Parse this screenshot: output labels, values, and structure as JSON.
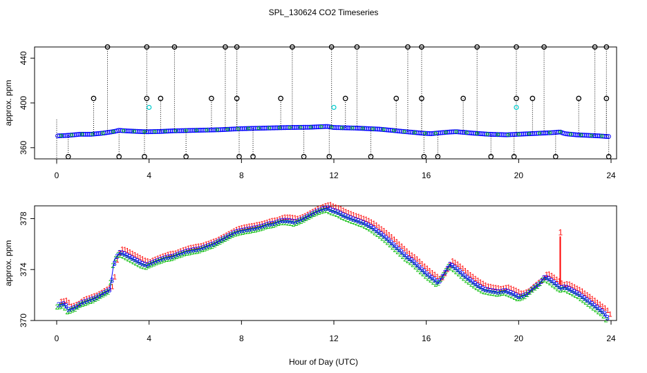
{
  "chart_data": [
    {
      "type": "scatter",
      "title": "SPL_130624  CO2 Timeseries",
      "ylabel": "approx. ppm",
      "xlim": [
        0,
        24
      ],
      "ylim": [
        350,
        450
      ],
      "xticks": [
        0,
        4,
        8,
        12,
        16,
        20,
        24
      ],
      "xtick_labels": [
        "0",
        "4",
        "8",
        "12",
        "16",
        "20",
        "24"
      ],
      "yticks": [
        360,
        400,
        440
      ],
      "ytick_labels": [
        "360",
        "400",
        "440"
      ],
      "grid": false,
      "main_series": {
        "x": [
          0.0,
          0.5,
          1.0,
          1.5,
          2.0,
          2.5,
          2.7,
          3.0,
          3.5,
          3.9,
          4.5,
          5.0,
          6.0,
          7.0,
          8.0,
          9.0,
          10.0,
          11.0,
          11.7,
          12.0,
          13.0,
          14.0,
          15.0,
          15.8,
          16.2,
          17.0,
          17.3,
          18.0,
          18.7,
          19.5,
          20.0,
          20.5,
          21.0,
          21.5,
          21.8,
          22.0,
          22.5,
          23.0,
          23.5,
          23.7,
          23.8
        ],
        "y": [
          370.5,
          371,
          372,
          372,
          373,
          374.5,
          375.5,
          375,
          374.5,
          374.2,
          374.5,
          375,
          375.5,
          376,
          377,
          377.5,
          378,
          378.3,
          379,
          378,
          377.5,
          376.5,
          374.5,
          373,
          372.5,
          374,
          374.3,
          373,
          372,
          371.5,
          372,
          372.5,
          373,
          373.5,
          374,
          372.5,
          371.5,
          371,
          370.5,
          370.2,
          370
        ]
      },
      "spikes": {
        "x": [
          2.2,
          3.9,
          5.1,
          7.3,
          7.8,
          10.2,
          11.9,
          13.0,
          15.2,
          15.8,
          18.2,
          19.9,
          21.1,
          23.3,
          23.8
        ],
        "high": [
          450,
          450,
          450,
          450,
          450,
          450,
          450,
          450,
          450,
          450,
          450,
          450,
          450,
          450,
          450
        ]
      },
      "mid_spikes": {
        "x": [
          1.6,
          3.9,
          4.5,
          6.7,
          7.8,
          9.7,
          12.5,
          14.7,
          15.8,
          17.6,
          19.9,
          20.6,
          22.6,
          23.8
        ],
        "y": [
          404,
          404,
          404,
          404,
          404,
          404,
          404,
          404,
          404,
          404,
          404,
          404,
          404,
          404
        ]
      },
      "low_spikes": {
        "x": [
          0.5,
          2.7,
          3.8,
          5.6,
          7.9,
          8.5,
          10.7,
          11.8,
          13.6,
          15.9,
          16.5,
          18.8,
          19.8,
          21.6,
          23.9
        ],
        "y": [
          352,
          352,
          352,
          352,
          352,
          352,
          352,
          352,
          352,
          352,
          352,
          352,
          352,
          352,
          352
        ]
      },
      "cyan_points": {
        "x": [
          4.0,
          12.0,
          19.9
        ],
        "y": [
          396,
          396,
          396
        ]
      },
      "marker_colors": {
        "main": "#0000ff",
        "spike": "#000000",
        "cyan": "#00cccc",
        "red": "#ff0000",
        "green": "#00cc00"
      }
    },
    {
      "type": "scatter",
      "title": "",
      "xlabel": "Hour of Day (UTC)",
      "ylabel": "approx. ppm",
      "xlim": [
        0,
        24
      ],
      "ylim": [
        370,
        379
      ],
      "xticks": [
        0,
        4,
        8,
        12,
        16,
        20,
        24
      ],
      "xtick_labels": [
        "0",
        "4",
        "8",
        "12",
        "16",
        "20",
        "24"
      ],
      "yticks": [
        370,
        374,
        378
      ],
      "ytick_labels": [
        "370",
        "374",
        "378"
      ],
      "grid": false,
      "series": [
        {
          "x": [
            0.1,
            0.3,
            0.5,
            0.8,
            1.0,
            1.3,
            1.6,
            1.9,
            2.1,
            2.3,
            2.4,
            2.5,
            2.7,
            2.9,
            3.1,
            3.3,
            3.5,
            3.7,
            3.9,
            4.1,
            4.4,
            4.7,
            5.0,
            5.3,
            5.6,
            5.9,
            6.2,
            6.5,
            6.8,
            7.0,
            7.3,
            7.6,
            7.9,
            8.2,
            8.5,
            8.8,
            9.1,
            9.4,
            9.7,
            10.0,
            10.3,
            10.6,
            10.9,
            11.2,
            11.5,
            11.7,
            11.9,
            12.1,
            12.4,
            12.7,
            13.0,
            13.3,
            13.6,
            13.9,
            14.2,
            14.5,
            14.8,
            15.1,
            15.4,
            15.7,
            16.0,
            16.3,
            16.5,
            16.7,
            17.0,
            17.3,
            17.6,
            17.9,
            18.2,
            18.5,
            18.8,
            19.1,
            19.4,
            19.7,
            20.0,
            20.3,
            20.6,
            20.9,
            21.1,
            21.3,
            21.6,
            21.8,
            22.0,
            22.3,
            22.6,
            22.9,
            23.2,
            23.5,
            23.7,
            23.8
          ],
          "y": [
            371.2,
            371.3,
            370.8,
            371.0,
            371.3,
            371.5,
            371.7,
            372.0,
            372.2,
            372.4,
            373.6,
            374.8,
            375.3,
            375.2,
            375.0,
            374.8,
            374.6,
            374.4,
            374.3,
            374.5,
            374.7,
            374.9,
            375.0,
            375.2,
            375.4,
            375.5,
            375.6,
            375.8,
            376.0,
            376.2,
            376.5,
            376.8,
            377.0,
            377.1,
            377.2,
            377.3,
            377.5,
            377.6,
            377.8,
            377.8,
            377.7,
            377.9,
            378.2,
            378.5,
            378.7,
            378.8,
            378.6,
            378.5,
            378.2,
            378.0,
            377.8,
            377.6,
            377.3,
            376.9,
            376.5,
            376.0,
            375.5,
            375.0,
            374.6,
            374.1,
            373.6,
            373.2,
            372.9,
            373.5,
            374.4,
            374.0,
            373.5,
            373.1,
            372.7,
            372.4,
            372.3,
            372.2,
            372.3,
            372.1,
            371.8,
            372.0,
            372.5,
            372.9,
            373.4,
            373.2,
            372.8,
            372.5,
            372.6,
            372.3,
            372.0,
            371.6,
            371.2,
            370.8,
            370.5,
            370.2
          ]
        }
      ],
      "annotations": [
        {
          "text": "1",
          "x": 21.8,
          "y": 376.6
        }
      ]
    }
  ]
}
